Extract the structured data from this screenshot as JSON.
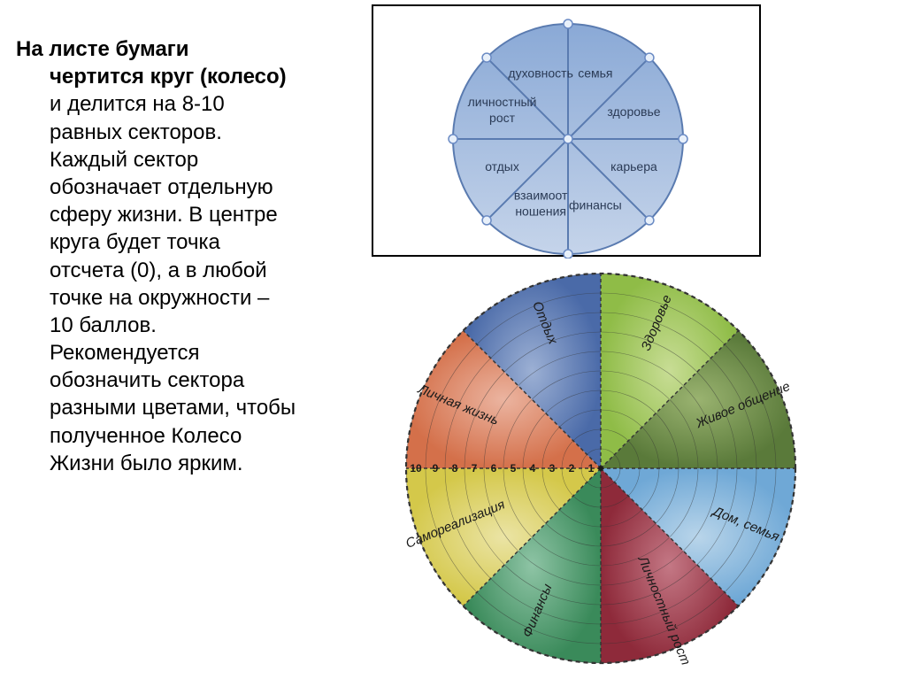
{
  "text": {
    "line1": "На листе бумаги",
    "line2": "чертится круг (колесо)",
    "line3": "и делится на 8-10",
    "line4": "равных секторов.",
    "line5": "Каждый сектор",
    "line6": "обозначает отдельную",
    "line7": "сферу жизни. В центре",
    "line8": "круга будет точка",
    "line9": "отсчета (0), а в любой",
    "line10": "точке на окружности –",
    "line11": "10 баллов.",
    "line12": "Рекомендуется",
    "line13": "обозначить сектора",
    "line14": "разными цветами, чтобы",
    "line15": "полученное Колесо",
    "line16": "Жизни было ярким."
  },
  "top_wheel": {
    "type": "pie",
    "background": "#ffffff",
    "border_color": "#000000",
    "fill_gradient_top": "#8aa9d6",
    "fill_gradient_bottom": "#c5d4ea",
    "line_color": "#5a7bb0",
    "node_fill": "#e8f0fa",
    "node_stroke": "#6b8bc4",
    "label_color": "#2a3a55",
    "label_fontsize": 14,
    "sectors": [
      {
        "label": "семья",
        "angle_deg": 67.5
      },
      {
        "label": "здоровье",
        "angle_deg": 22.5
      },
      {
        "label": "карьера",
        "angle_deg": -22.5
      },
      {
        "label": "финансы",
        "angle_deg": -67.5
      },
      {
        "label": "взаимоот ношения",
        "angle_deg": -112.5,
        "two_line": true
      },
      {
        "label": "отдых",
        "angle_deg": -157.5
      },
      {
        "label": "личностный рост",
        "angle_deg": 157.5,
        "two_line": true
      },
      {
        "label": "духовность",
        "angle_deg": 112.5
      }
    ]
  },
  "bottom_wheel": {
    "type": "radial-pie",
    "rings": 10,
    "scale_labels": [
      "10",
      "9",
      "8",
      "7",
      "6",
      "5",
      "4",
      "3",
      "2",
      "1"
    ],
    "label_fontsize": 15,
    "scale_fontsize": 12,
    "outer_dash_color": "#333333",
    "ring_color": "#333333",
    "sectors": [
      {
        "label": "Здоровье",
        "angle_center": 67.5,
        "color_outer": "#8fbc47",
        "color_inner": "#c8dd95"
      },
      {
        "label": "Живое общение",
        "angle_center": 22.5,
        "color_outer": "#5a7a3a",
        "color_inner": "#9ab370"
      },
      {
        "label": "Дом, семья",
        "angle_center": -22.5,
        "color_outer": "#6fa8d6",
        "color_inner": "#b9d5ea"
      },
      {
        "label": "Личностный рост",
        "angle_center": -67.5,
        "color_outer": "#8e2a3a",
        "color_inner": "#c47885"
      },
      {
        "label": "Финансы",
        "angle_center": -112.5,
        "color_outer": "#3a8a5a",
        "color_inner": "#8ec4a5"
      },
      {
        "label": "Самореализация",
        "angle_center": -157.5,
        "color_outer": "#d4c84a",
        "color_inner": "#ebe4a5"
      },
      {
        "label": "Личная жизнь",
        "angle_center": 157.5,
        "color_outer": "#d4704a",
        "color_inner": "#ebb4a0"
      },
      {
        "label": "Отдых",
        "angle_center": 112.5,
        "color_outer": "#4a6aa8",
        "color_inner": "#9cb0d4"
      }
    ]
  }
}
